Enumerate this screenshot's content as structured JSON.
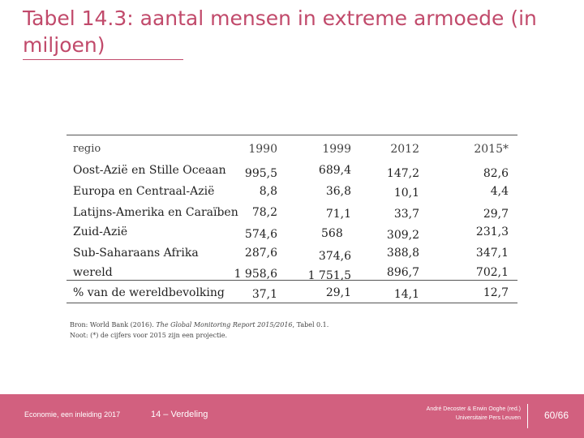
{
  "title": "Tabel 14.3: aantal mensen in extreme armoede (in miljoen)",
  "table": {
    "header": [
      "regio",
      "1990",
      "1999",
      "2012",
      "2015*"
    ],
    "rows": [
      [
        "Oost-Azië en Stille Oceaan",
        "995,5",
        "689,4",
        "147,2",
        "82,6"
      ],
      [
        "Europa en Centraal-Azië",
        "8,8",
        "36,8",
        "10,1",
        "4,4"
      ],
      [
        "Latijns-Amerika en Caraïben",
        "78,2",
        "71,1",
        "33,7",
        "29,7"
      ],
      [
        "Zuid-Azië",
        "574,6",
        "568",
        "309,2",
        "231,3"
      ],
      [
        "Sub-Saharaans Afrika",
        "287,6",
        "374,6",
        "388,8",
        "347,1"
      ],
      [
        "wereld",
        "1 958,6",
        "1 751,5",
        "896,7",
        "702,1"
      ],
      [
        "% van de wereldbevolking",
        "37,1",
        "29,1",
        "14,1",
        "12,7"
      ]
    ]
  },
  "source": {
    "prefix": "Bron: World Bank (2016). ",
    "italic": "The Global Monitoring Report 2015/2016",
    "suffix": ", Tabel 0.1.",
    "note": "Noot: (*) de cijfers voor 2015 zijn een projectie."
  },
  "footer": {
    "left": "Economie, een inleiding 2017",
    "middle": "14 – Verdeling",
    "right_line1": "André Decoster & Erwin Ooghe (red.)",
    "right_line2": "Universitaire Pers Leuven",
    "page": "60/66"
  },
  "colors": {
    "accent": "#c14a6b",
    "footer_bg": "#d2607f"
  }
}
